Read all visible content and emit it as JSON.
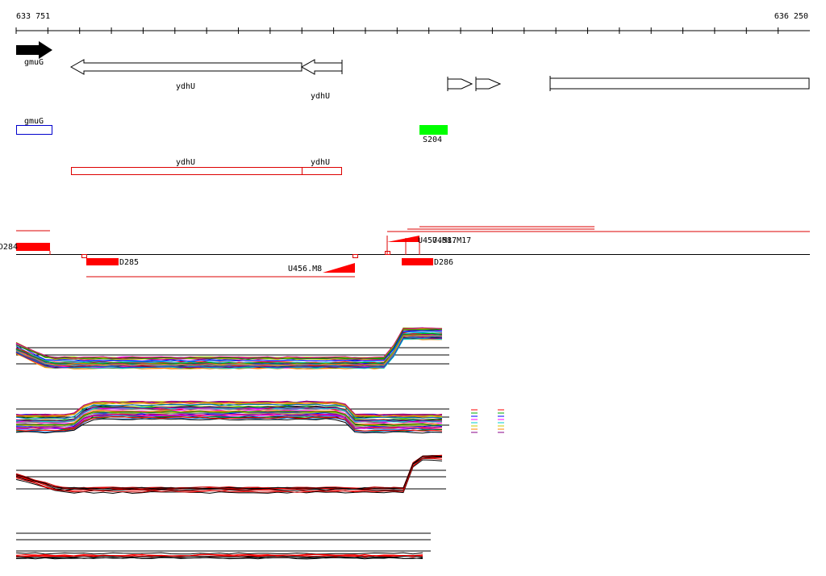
{
  "ruler": {
    "start": "633 751",
    "end": "636 250"
  },
  "genes": [
    {
      "label": "gmuG"
    },
    {
      "label": "ydhU"
    },
    {
      "label": "ydhU"
    }
  ],
  "features": {
    "blue": "gmuG",
    "green": "S204",
    "red": [
      "ydhU",
      "ydhU"
    ]
  },
  "probes": {
    "blocks": [
      "D284",
      "D285",
      "D286"
    ],
    "segments": [
      "U456.M8",
      "U457.M17",
      "U458.M17"
    ]
  }
}
